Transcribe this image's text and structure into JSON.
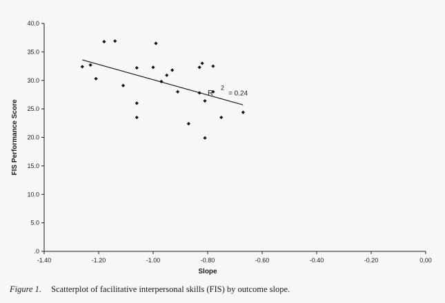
{
  "chart_data": {
    "type": "scatter",
    "xlabel": "Slope",
    "ylabel": "FIS Performance Score",
    "xlim": [
      -1.4,
      0.0
    ],
    "ylim": [
      0,
      40
    ],
    "x_ticks": [
      "-1.40",
      "-1.20",
      "-1.00",
      "-0.80",
      "-0.60",
      "-0.40",
      "-0.20",
      "0.00"
    ],
    "y_ticks": [
      ".0",
      "5.0",
      "10.0",
      "15.0",
      "20.0",
      "25.0",
      "30.0",
      "35.0",
      "40.0"
    ],
    "grid": false,
    "points": [
      {
        "x": -1.26,
        "y": 32.4
      },
      {
        "x": -1.23,
        "y": 32.7
      },
      {
        "x": -1.21,
        "y": 30.3
      },
      {
        "x": -1.18,
        "y": 36.8
      },
      {
        "x": -1.14,
        "y": 36.9
      },
      {
        "x": -1.11,
        "y": 29.1
      },
      {
        "x": -1.06,
        "y": 32.2
      },
      {
        "x": -1.06,
        "y": 26.0
      },
      {
        "x": -1.06,
        "y": 23.5
      },
      {
        "x": -1.0,
        "y": 32.3
      },
      {
        "x": -0.99,
        "y": 36.5
      },
      {
        "x": -0.97,
        "y": 29.8
      },
      {
        "x": -0.95,
        "y": 30.9
      },
      {
        "x": -0.93,
        "y": 31.8
      },
      {
        "x": -0.91,
        "y": 28.0
      },
      {
        "x": -0.87,
        "y": 22.4
      },
      {
        "x": -0.83,
        "y": 32.3
      },
      {
        "x": -0.83,
        "y": 27.8
      },
      {
        "x": -0.82,
        "y": 33.0
      },
      {
        "x": -0.81,
        "y": 26.4
      },
      {
        "x": -0.81,
        "y": 19.9
      },
      {
        "x": -0.78,
        "y": 32.5
      },
      {
        "x": -0.78,
        "y": 28.0
      },
      {
        "x": -0.75,
        "y": 23.5
      },
      {
        "x": -0.67,
        "y": 24.4
      }
    ],
    "trendline": {
      "x": [
        -1.26,
        -0.67
      ],
      "y": [
        33.6,
        25.7
      ]
    },
    "annotation": {
      "base": "R",
      "superscript": "2",
      "value": "= 0.24"
    }
  },
  "caption": {
    "figure_label": "Figure 1.",
    "text": "Scatterplot of facilitative interpersonal skills (FIS) by outcome slope."
  }
}
